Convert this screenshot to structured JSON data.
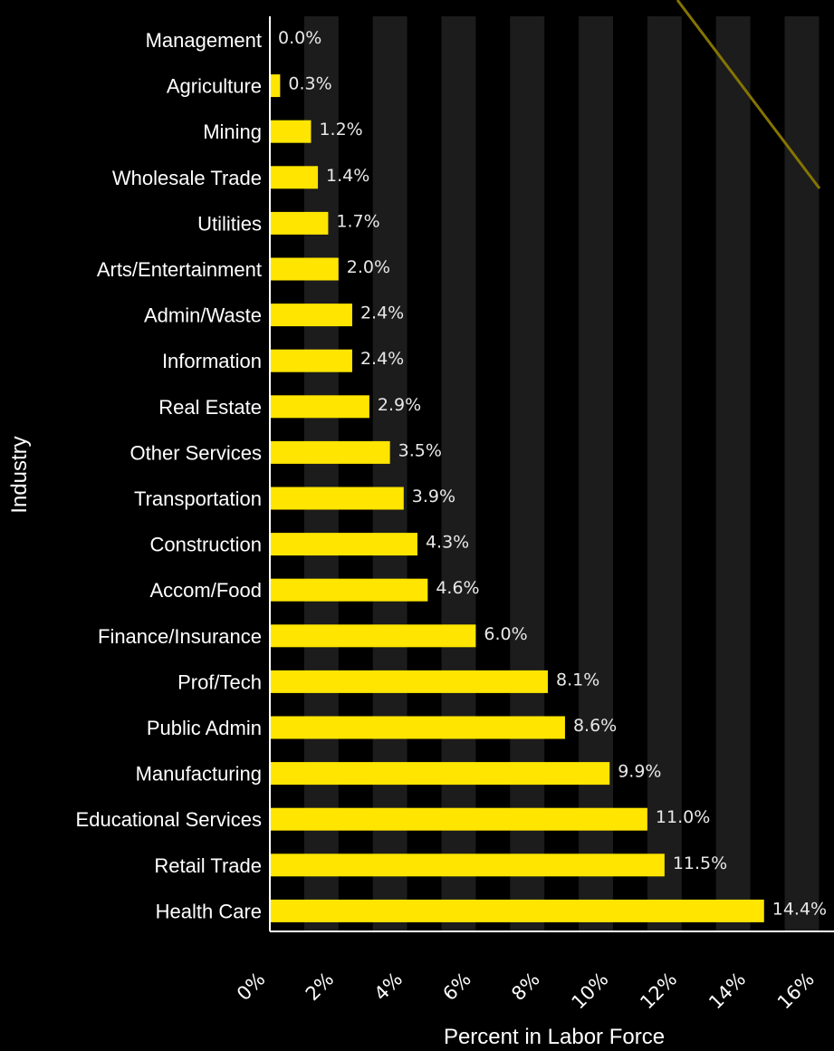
{
  "chart_data": {
    "type": "bar",
    "orientation": "horizontal",
    "xlabel": "Percent in Labor Force",
    "ylabel": "Industry",
    "xlim": [
      0,
      16
    ],
    "x_ticks": [
      "0%",
      "2%",
      "4%",
      "6%",
      "8%",
      "10%",
      "12%",
      "14%",
      "16%"
    ],
    "categories": [
      "Management",
      "Agriculture",
      "Mining",
      "Wholesale Trade",
      "Utilities",
      "Arts/Entertainment",
      "Admin/Waste",
      "Information",
      "Real Estate",
      "Other Services",
      "Transportation",
      "Construction",
      "Accom/Food",
      "Finance/Insurance",
      "Prof/Tech",
      "Public Admin",
      "Manufacturing",
      "Educational Services",
      "Retail Trade",
      "Health Care"
    ],
    "values": [
      0.0,
      0.3,
      1.2,
      1.4,
      1.7,
      2.0,
      2.4,
      2.4,
      2.9,
      3.5,
      3.9,
      4.3,
      4.6,
      6.0,
      8.1,
      8.6,
      9.9,
      11.0,
      11.5,
      14.4
    ],
    "value_labels": [
      "0.0%",
      "0.3%",
      "1.2%",
      "1.4%",
      "1.7%",
      "2.0%",
      "2.4%",
      "2.4%",
      "2.9%",
      "3.5%",
      "3.9%",
      "4.3%",
      "4.6%",
      "6.0%",
      "8.1%",
      "8.6%",
      "9.9%",
      "11.0%",
      "11.5%",
      "14.4%"
    ],
    "grid": "alternating vertical bands",
    "legend": "none",
    "colors": {
      "background": "#000000",
      "band": "#1c1c1c",
      "bar": "#ffe500",
      "axis": "#ffffff",
      "trend_line": "#857400"
    }
  }
}
